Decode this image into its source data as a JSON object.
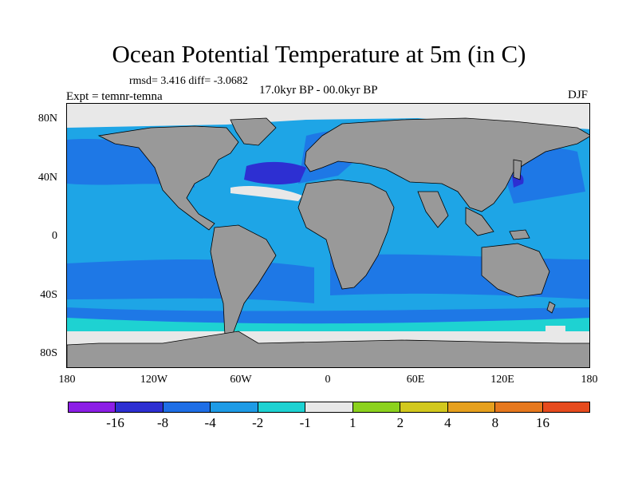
{
  "title": "Ocean Potential Temperature at 5m (in C)",
  "stats": "rmsd= 3.416 diff= -3.0682",
  "expt": "Expt = temnr-temna",
  "period": "17.0kyr BP - 00.0kyr BP",
  "season": "DJF",
  "lat_ticks": [
    "80N",
    "40N",
    "0",
    "40S",
    "80S"
  ],
  "lon_ticks": [
    "180",
    "120W",
    "60W",
    "0",
    "60E",
    "120E",
    "180"
  ],
  "colorbar": {
    "colors": [
      "#8c1ee6",
      "#2d2fd2",
      "#1e6ee6",
      "#1e9be6",
      "#1ed2d2",
      "#e8e8e8",
      "#8cd21e",
      "#d2c81e",
      "#e6a01e",
      "#e6781e",
      "#e64b1e"
    ],
    "labels": [
      "-16",
      "-8",
      "-4",
      "-2",
      "-1",
      "1",
      "2",
      "4",
      "8",
      "16"
    ]
  },
  "map_colors": {
    "land": "#999999",
    "ocean_main": "#1ea5e6",
    "ocean_cool": "#1e78e6",
    "ocean_cold": "#2d2fd2",
    "ocean_mild": "#1ed2d2",
    "ice": "#e8e8e8",
    "warm": "#8cd21e"
  }
}
